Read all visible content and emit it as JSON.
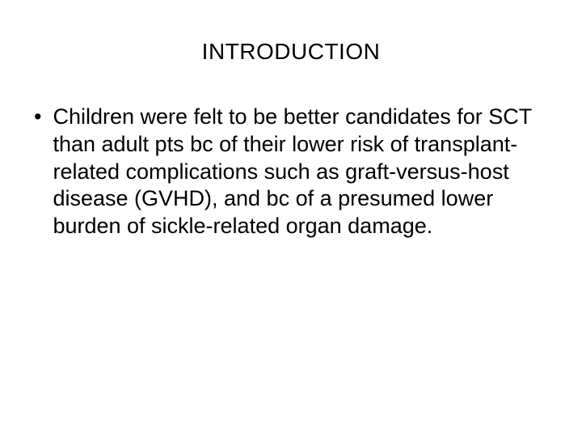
{
  "slide": {
    "title": "INTRODUCTION",
    "title_fontsize": 28,
    "title_color": "#000000",
    "body_fontsize": 27,
    "body_color": "#000000",
    "background_color": "#ffffff",
    "font_family": "Arial",
    "bullets": [
      {
        "marker": "•",
        "text": "Children were felt to be better candidates for SCT than adult pts bc of their lower risk of transplant-related complications such as graft-versus-host disease (GVHD), and bc of a presumed lower burden of sickle-related organ damage."
      }
    ]
  }
}
